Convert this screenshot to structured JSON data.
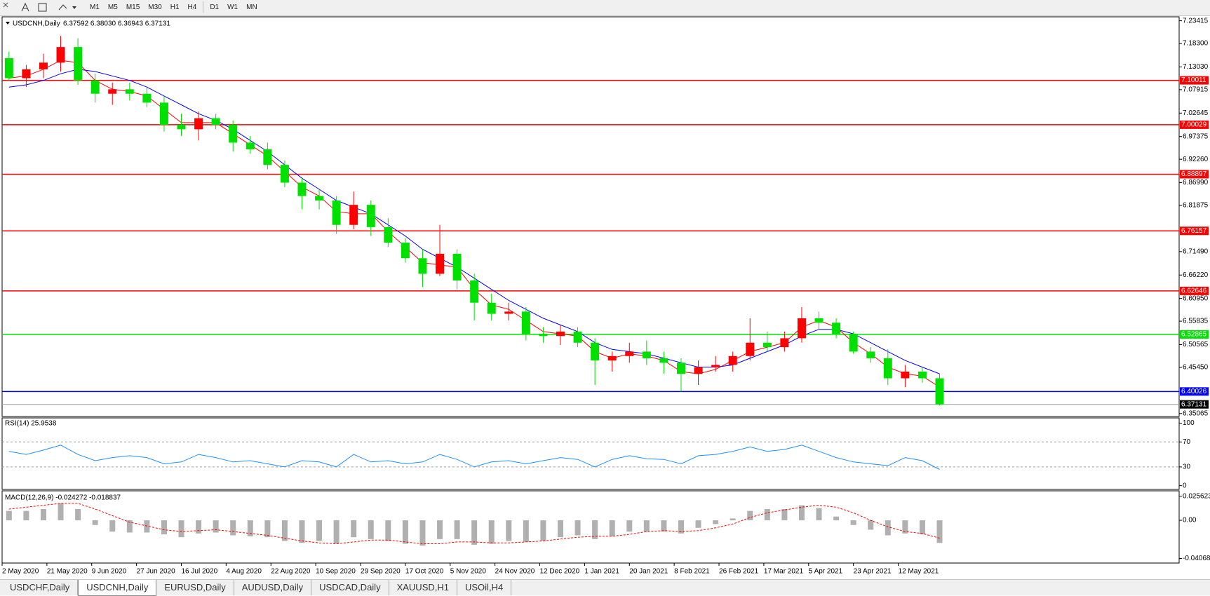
{
  "toolbar": {
    "timeframes": [
      "M1",
      "M5",
      "M15",
      "M30",
      "H1",
      "H4",
      "D1",
      "W1",
      "MN"
    ]
  },
  "tabs": {
    "items": [
      "USDCHF,Daily",
      "USDCNH,Daily",
      "EURUSD,Daily",
      "AUDUSD,Daily",
      "USDCAD,Daily",
      "XAUUSD,H1",
      "USOil,H4"
    ],
    "active": 1
  },
  "chart_data": [
    {
      "type": "candlestick",
      "title": "USDCNH,Daily",
      "ohlc_label": "6.37592 6.38030 6.36943 6.37131",
      "x": [
        2,
        7,
        12,
        17,
        22,
        27,
        32,
        37,
        42,
        47,
        52,
        57,
        62,
        67,
        72,
        77,
        82,
        87,
        92,
        97,
        102,
        107,
        112,
        117,
        122,
        127,
        132,
        137,
        142,
        147,
        152,
        157,
        162,
        167,
        172,
        177,
        182,
        187,
        192,
        197,
        202,
        207,
        212,
        217,
        222,
        227,
        232,
        237,
        242,
        247,
        252,
        257,
        262,
        267,
        272
      ],
      "open": [
        7.15,
        7.105,
        7.125,
        7.14,
        7.175,
        7.1,
        7.07,
        7.08,
        7.07,
        7.05,
        7.0,
        6.99,
        7.015,
        7.0,
        6.96,
        6.945,
        6.91,
        6.87,
        6.84,
        6.83,
        6.775,
        6.82,
        6.77,
        6.735,
        6.7,
        6.665,
        6.71,
        6.65,
        6.6,
        6.575,
        6.58,
        6.53,
        6.525,
        6.535,
        6.51,
        6.47,
        6.48,
        6.49,
        6.475,
        6.465,
        6.44,
        6.455,
        6.46,
        6.48,
        6.51,
        6.5,
        6.52,
        6.565,
        6.555,
        6.53,
        6.49,
        6.475,
        6.43,
        6.445,
        6.43
      ],
      "high": [
        7.165,
        7.135,
        7.16,
        7.2,
        7.195,
        7.115,
        7.095,
        7.095,
        7.085,
        7.065,
        7.025,
        7.03,
        7.025,
        7.01,
        6.975,
        6.96,
        6.92,
        6.88,
        6.855,
        6.84,
        6.85,
        6.83,
        6.79,
        6.745,
        6.72,
        6.775,
        6.72,
        6.665,
        6.62,
        6.6,
        6.59,
        6.545,
        6.55,
        6.545,
        6.52,
        6.49,
        6.51,
        6.515,
        6.49,
        6.475,
        6.47,
        6.48,
        6.49,
        6.565,
        6.535,
        6.535,
        6.59,
        6.58,
        6.565,
        6.535,
        6.5,
        6.495,
        6.46,
        6.455,
        6.44
      ],
      "low": [
        7.1,
        7.085,
        7.105,
        7.12,
        7.09,
        7.05,
        7.045,
        7.055,
        7.04,
        6.985,
        6.975,
        6.965,
        6.99,
        6.94,
        6.935,
        6.9,
        6.86,
        6.81,
        6.81,
        6.755,
        6.765,
        6.75,
        6.725,
        6.69,
        6.635,
        6.66,
        6.63,
        6.56,
        6.56,
        6.56,
        6.515,
        6.51,
        6.505,
        6.5,
        6.415,
        6.445,
        6.465,
        6.46,
        6.44,
        6.4,
        6.415,
        6.445,
        6.445,
        6.47,
        6.49,
        6.49,
        6.51,
        6.54,
        6.52,
        6.485,
        6.465,
        6.415,
        6.41,
        6.42,
        6.369
      ],
      "close": [
        7.105,
        7.125,
        7.14,
        7.175,
        7.1,
        7.07,
        7.08,
        7.07,
        7.05,
        7.0,
        6.99,
        7.015,
        7.0,
        6.96,
        6.945,
        6.91,
        6.87,
        6.84,
        6.83,
        6.775,
        6.82,
        6.77,
        6.735,
        6.7,
        6.665,
        6.71,
        6.65,
        6.6,
        6.575,
        6.58,
        6.53,
        6.525,
        6.535,
        6.51,
        6.47,
        6.48,
        6.49,
        6.475,
        6.465,
        6.44,
        6.455,
        6.46,
        6.48,
        6.51,
        6.5,
        6.52,
        6.565,
        6.555,
        6.53,
        6.49,
        6.475,
        6.43,
        6.445,
        6.43,
        6.371
      ],
      "up_color": "#ff0000",
      "down_color": "#00e000",
      "moving_averages": [
        {
          "color": "#ff0000",
          "values": [
            7.105,
            7.11,
            7.125,
            7.145,
            7.14,
            7.1,
            7.08,
            7.075,
            7.065,
            7.035,
            7.005,
            7.005,
            7.005,
            6.98,
            6.955,
            6.93,
            6.895,
            6.86,
            6.84,
            6.805,
            6.8,
            6.8,
            6.76,
            6.725,
            6.69,
            6.685,
            6.68,
            6.63,
            6.595,
            6.585,
            6.56,
            6.535,
            6.53,
            6.525,
            6.49,
            6.475,
            6.485,
            6.48,
            6.47,
            6.445,
            6.44,
            6.45,
            6.47,
            6.49,
            6.5,
            6.51,
            6.545,
            6.56,
            6.545,
            6.51,
            6.485,
            6.455,
            6.44,
            6.435,
            6.41
          ]
        },
        {
          "color": "#0000ff",
          "values": [
            7.085,
            7.09,
            7.1,
            7.115,
            7.125,
            7.12,
            7.11,
            7.1,
            7.085,
            7.065,
            7.045,
            7.025,
            7.01,
            6.99,
            6.965,
            6.94,
            6.91,
            6.88,
            6.855,
            6.83,
            6.815,
            6.8,
            6.775,
            6.75,
            6.72,
            6.7,
            6.68,
            6.655,
            6.63,
            6.605,
            6.585,
            6.565,
            6.55,
            6.535,
            6.51,
            6.495,
            6.49,
            6.485,
            6.475,
            6.465,
            6.455,
            6.455,
            6.46,
            6.475,
            6.49,
            6.505,
            6.525,
            6.54,
            6.54,
            6.53,
            6.51,
            6.49,
            6.47,
            6.455,
            6.44
          ]
        }
      ],
      "levels": [
        {
          "value": 7.10011,
          "color": "#ff0000"
        },
        {
          "value": 7.00029,
          "color": "#ff0000"
        },
        {
          "value": 6.88897,
          "color": "#ff0000"
        },
        {
          "value": 6.76157,
          "color": "#ff0000"
        },
        {
          "value": 6.62646,
          "color": "#ff0000"
        },
        {
          "value": 6.52865,
          "color": "#00e000"
        },
        {
          "value": 6.40026,
          "color": "#0000ff"
        }
      ],
      "price_line": {
        "value": 6.37131,
        "color": "#a0a0a0"
      },
      "xlim": [
        0,
        341.5
      ],
      "ylim": [
        6.344,
        7.243
      ],
      "yticks": [
        7.23415,
        {
          "value": 7.183,
          "label": "7.18300"
        },
        {
          "value": 7.1303,
          "label": "7.13030"
        },
        7.07915,
        7.02645,
        6.97375,
        {
          "value": 6.9226,
          "label": "6.92260"
        },
        {
          "value": 6.8699,
          "label": "6.86990"
        },
        6.81875,
        {
          "value": 6.7149,
          "label": "6.71490"
        },
        {
          "value": 6.6622,
          "label": "6.66220"
        },
        {
          "value": 6.6095,
          "label": "6.60950"
        },
        6.55835,
        6.50565,
        {
          "value": 6.4545,
          "label": "6.45450"
        },
        6.35065
      ],
      "xticks": [
        {
          "value": 0,
          "label": "2 May 2020"
        },
        {
          "value": 13,
          "label": "21 May 2020"
        },
        {
          "value": 26,
          "label": "9 Jun 2020"
        },
        {
          "value": 39,
          "label": "27 Jun 2020"
        },
        {
          "value": 52,
          "label": "16 Jul 2020"
        },
        {
          "value": 65,
          "label": "4 Aug 2020"
        },
        {
          "value": 78,
          "label": "22 Aug 2020"
        },
        {
          "value": 91,
          "label": "10 Sep 2020"
        },
        {
          "value": 104,
          "label": "29 Sep 2020"
        },
        {
          "value": 117,
          "label": "17 Oct 2020"
        },
        {
          "value": 130,
          "label": "5 Nov 2020"
        },
        {
          "value": 143,
          "label": "24 Nov 2020"
        },
        {
          "value": 156,
          "label": "12 Dec 2020"
        },
        {
          "value": 169,
          "label": "1 Jan 2021"
        },
        {
          "value": 182,
          "label": "20 Jan 2021"
        },
        {
          "value": 195,
          "label": "8 Feb 2021"
        },
        {
          "value": 208,
          "label": "26 Feb 2021"
        },
        {
          "value": 221,
          "label": "17 Mar 2021"
        },
        {
          "value": 234,
          "label": "5 Apr 2021"
        },
        {
          "value": 247,
          "label": "23 Apr 2021"
        },
        {
          "value": 260,
          "label": "12 May 2021"
        }
      ]
    },
    {
      "type": "line",
      "title": "RSI(14) 25.9538",
      "color": "#1e90ff",
      "values": [
        55,
        50,
        57,
        65,
        50,
        40,
        45,
        48,
        45,
        35,
        38,
        50,
        45,
        38,
        40,
        35,
        30,
        40,
        38,
        30,
        50,
        38,
        40,
        35,
        38,
        50,
        42,
        30,
        38,
        40,
        35,
        40,
        45,
        42,
        30,
        42,
        48,
        43,
        42,
        35,
        48,
        50,
        55,
        62,
        55,
        58,
        65,
        55,
        45,
        38,
        35,
        32,
        45,
        40,
        26
      ],
      "levels": [
        30,
        70
      ],
      "ylim": [
        -6,
        108.5
      ],
      "yticks": [
        100,
        70,
        30,
        0
      ]
    },
    {
      "type": "macd",
      "title": "MACD(12,26,9) -0.024272 -0.018837",
      "histogram": {
        "color": "#b0b0b0",
        "values": [
          0.01,
          0.01,
          0.012,
          0.018,
          0.012,
          -0.005,
          -0.012,
          -0.013,
          -0.013,
          -0.015,
          -0.018,
          -0.014,
          -0.013,
          -0.016,
          -0.017,
          -0.018,
          -0.022,
          -0.024,
          -0.022,
          -0.025,
          -0.018,
          -0.02,
          -0.022,
          -0.025,
          -0.027,
          -0.02,
          -0.02,
          -0.026,
          -0.025,
          -0.022,
          -0.023,
          -0.022,
          -0.018,
          -0.016,
          -0.02,
          -0.017,
          -0.012,
          -0.012,
          -0.012,
          -0.014,
          -0.008,
          -0.004,
          0.002,
          0.01,
          0.012,
          0.012,
          0.016,
          0.013,
          0.004,
          -0.005,
          -0.01,
          -0.016,
          -0.014,
          -0.015,
          -0.024
        ]
      },
      "signal": {
        "color": "#ff0000",
        "values": [
          0.012,
          0.014,
          0.016,
          0.018,
          0.018,
          0.012,
          0.005,
          -0.002,
          -0.006,
          -0.01,
          -0.012,
          -0.011,
          -0.01,
          -0.012,
          -0.014,
          -0.016,
          -0.019,
          -0.022,
          -0.024,
          -0.025,
          -0.023,
          -0.021,
          -0.021,
          -0.023,
          -0.025,
          -0.025,
          -0.023,
          -0.023,
          -0.024,
          -0.024,
          -0.023,
          -0.022,
          -0.02,
          -0.018,
          -0.017,
          -0.017,
          -0.015,
          -0.012,
          -0.011,
          -0.012,
          -0.011,
          -0.008,
          -0.004,
          0.003,
          0.008,
          0.011,
          0.014,
          0.016,
          0.014,
          0.008,
          0.0,
          -0.007,
          -0.012,
          -0.014,
          -0.019
        ]
      },
      "ylim": [
        -0.0455,
        0.0314
      ],
      "yticks": [
        0.025623,
        {
          "value": 0,
          "label": "0.00"
        },
        -0.04068
      ]
    }
  ]
}
